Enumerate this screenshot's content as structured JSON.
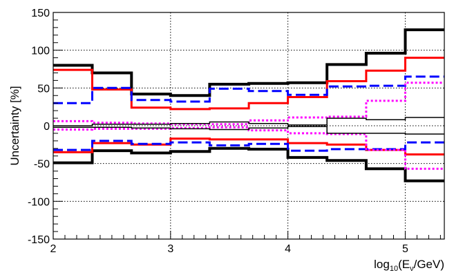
{
  "chart_data": {
    "type": "line",
    "step": true,
    "xlabel": {
      "base": "log",
      "base_sub": "10",
      "mid": "(E",
      "mid_sub": "ν",
      "end": "/GeV)"
    },
    "ylabel": "Uncertainty [%]",
    "xlim": [
      2,
      5.333
    ],
    "ylim": [
      -150,
      150
    ],
    "x_ticks": [
      2,
      3,
      4,
      5
    ],
    "x_tick_labels": [
      "2",
      "3",
      "4",
      "5"
    ],
    "y_ticks": [
      -150,
      -100,
      -50,
      0,
      50,
      100,
      150
    ],
    "y_tick_labels": [
      "-150",
      "-100",
      "-50",
      "0",
      "50",
      "100",
      "150"
    ],
    "grid": true,
    "bin_edges": [
      2,
      2.333,
      2.667,
      3,
      3.333,
      3.667,
      4,
      4.333,
      4.667,
      5,
      5.333
    ],
    "series": [
      {
        "color": "#000000",
        "style": "solid",
        "width": 4,
        "values": [
          80,
          70,
          42,
          40,
          55,
          56,
          57,
          81,
          96,
          127
        ]
      },
      {
        "color": "#000000",
        "style": "solid",
        "width": 4,
        "values": [
          -49,
          -33,
          -36,
          -34,
          -30,
          -31,
          -42,
          -46,
          -57,
          -73
        ]
      },
      {
        "color": "#ff0000",
        "style": "solid",
        "width": 3,
        "values": [
          74,
          48,
          24,
          22,
          23,
          30,
          38,
          59,
          73,
          90
        ]
      },
      {
        "color": "#ff0000",
        "style": "solid",
        "width": 3,
        "values": [
          -35,
          -23,
          -25,
          -17,
          -18,
          -18,
          -23,
          -25,
          -32,
          -38
        ]
      },
      {
        "color": "#0000ff",
        "style": "dashed",
        "width": 3,
        "values": [
          30,
          50,
          34,
          32,
          49,
          46,
          41,
          52,
          53,
          65
        ]
      },
      {
        "color": "#0000ff",
        "style": "dashed",
        "width": 3,
        "values": [
          -32,
          -20,
          -24,
          -22,
          -26,
          -24,
          -33,
          -31,
          -31,
          -22
        ]
      },
      {
        "color": "#ff00ff",
        "style": "dotted",
        "width": 3,
        "values": [
          6,
          4,
          3,
          2,
          2,
          7,
          11,
          12,
          33,
          57
        ]
      },
      {
        "color": "#ff00ff",
        "style": "dotted",
        "width": 3,
        "values": [
          -5,
          -4,
          -4,
          -3,
          -2,
          -6,
          -10,
          -11,
          -32,
          -57
        ]
      },
      {
        "color": "#000000",
        "style": "solid",
        "width": 1.5,
        "values": [
          0,
          2,
          2,
          3,
          5,
          3,
          1,
          10,
          8,
          11
        ]
      },
      {
        "color": "#000000",
        "style": "solid",
        "width": 1.5,
        "values": [
          -2,
          -2,
          -3,
          -4,
          -5,
          -3,
          -1,
          -10,
          -10,
          -11
        ]
      }
    ]
  }
}
